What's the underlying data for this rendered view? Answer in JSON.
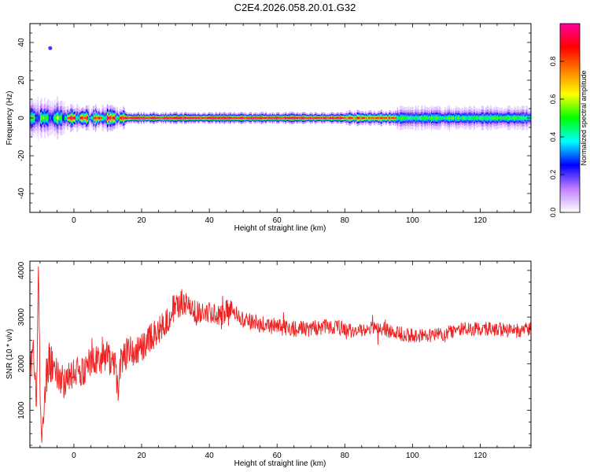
{
  "title": "C2E4.2026.058.20.01.G32",
  "chart_data": [
    {
      "type": "heatmap",
      "name": "spectrogram",
      "xlabel": "Height of straight line (km)",
      "ylabel": "Frequency (Hz)",
      "xlim": [
        -13,
        135
      ],
      "ylim": [
        -50,
        50
      ],
      "x_ticks": [
        0,
        20,
        40,
        60,
        80,
        100,
        120
      ],
      "y_ticks": [
        -40,
        -20,
        0,
        20,
        40
      ],
      "x_tick_labels": [
        "0",
        "20",
        "40",
        "60",
        "80",
        "100",
        "120"
      ],
      "y_tick_labels": [
        "-40",
        "-20",
        "0",
        "20",
        "40"
      ],
      "colorbar": {
        "label": "Normalized spectral amplitude",
        "range": [
          0,
          1
        ],
        "ticks": [
          0.0,
          0.2,
          0.4,
          0.6,
          0.8
        ],
        "tick_labels": [
          "0.0",
          "0.2",
          "0.4",
          "0.6",
          "0.8"
        ],
        "colors": [
          "#ffffff",
          "#c080ff",
          "#0000ff",
          "#00ffff",
          "#00ff00",
          "#ffff00",
          "#ff8000",
          "#ff0000",
          "#ff00a0"
        ]
      },
      "ridge": {
        "center_hz": 0,
        "segments": [
          {
            "x0": -13,
            "x1": -3,
            "amp": 0.55,
            "spread_hz": 4
          },
          {
            "x0": -3,
            "x1": 15,
            "amp": 0.9,
            "spread_hz": 2
          },
          {
            "x0": 15,
            "x1": 80,
            "amp": 1.0,
            "spread_hz": 1.5
          },
          {
            "x0": 80,
            "x1": 95,
            "amp": 0.85,
            "spread_hz": 2
          },
          {
            "x0": 95,
            "x1": 135,
            "amp": 0.5,
            "spread_hz": 3
          }
        ],
        "outliers": [
          {
            "x": -7,
            "y": 37,
            "amp": 0.2
          }
        ]
      }
    },
    {
      "type": "line",
      "name": "snr",
      "xlabel": "Height of straight line (km)",
      "ylabel": "SNR (10 * v/v)",
      "xlim": [
        -13,
        135
      ],
      "ylim": [
        200,
        4200
      ],
      "x_ticks": [
        0,
        20,
        40,
        60,
        80,
        100,
        120
      ],
      "y_ticks": [
        1000,
        2000,
        3000,
        4000
      ],
      "x_tick_labels": [
        "0",
        "20",
        "40",
        "60",
        "80",
        "100",
        "120"
      ],
      "y_tick_labels": [
        "1000",
        "2000",
        "3000",
        "4000"
      ],
      "color": "#ee2222",
      "series": [
        {
          "name": "SNR",
          "x": [
            -13,
            -12,
            -11,
            -10.5,
            -10,
            -9.5,
            -9,
            -8,
            -7,
            -6,
            -5,
            -4,
            -2,
            0,
            2,
            4,
            6,
            8,
            10,
            12,
            13,
            14,
            15,
            18,
            20,
            22,
            24,
            26,
            28,
            30,
            32,
            34,
            36,
            38,
            40,
            42,
            44,
            46,
            48,
            50,
            55,
            60,
            65,
            70,
            75,
            80,
            85,
            90,
            95,
            100,
            105,
            110,
            115,
            120,
            125,
            130,
            135
          ],
          "y": [
            1800,
            2300,
            1200,
            4100,
            1500,
            400,
            800,
            1800,
            2100,
            1900,
            1700,
            1600,
            1650,
            1750,
            1850,
            1950,
            2000,
            2100,
            2150,
            2000,
            1400,
            2100,
            2200,
            2250,
            2350,
            2500,
            2650,
            2800,
            3000,
            3250,
            3300,
            3200,
            3100,
            3100,
            3100,
            3050,
            3050,
            3200,
            3050,
            2950,
            2850,
            2800,
            2750,
            2750,
            2800,
            2750,
            2700,
            2800,
            2650,
            2600,
            2600,
            2650,
            2750,
            2750,
            2750,
            2700,
            2750
          ],
          "noise": [
            300,
            300,
            300,
            200,
            300,
            150,
            200,
            500,
            500,
            450,
            450,
            400,
            350,
            350,
            350,
            350,
            350,
            350,
            350,
            350,
            250,
            350,
            350,
            300,
            300,
            300,
            300,
            300,
            300,
            300,
            300,
            250,
            250,
            200,
            220,
            220,
            220,
            250,
            200,
            200,
            180,
            180,
            170,
            170,
            170,
            170,
            160,
            170,
            160,
            160,
            150,
            150,
            150,
            150,
            150,
            150,
            150
          ]
        }
      ]
    }
  ]
}
